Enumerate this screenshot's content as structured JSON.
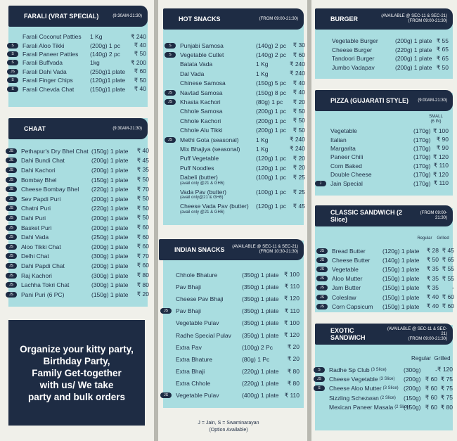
{
  "farali": {
    "title": "FARALI (VRAT SPECIAL)",
    "time": "(9:30AM-21:30)",
    "items": [
      {
        "name": "Farali Coconut Patties",
        "qty": "1 Kg",
        "price": "₹ 240"
      },
      {
        "name": "Farali Aloo Tikki",
        "qty": "(200g) 1 pc",
        "price": "₹ 40",
        "tag": "S"
      },
      {
        "name": "Farali Paneer Patties",
        "qty": "(140g) 2 pc",
        "price": "₹ 50",
        "tag": "S"
      },
      {
        "name": "Farali Buffvada",
        "qty": "1kg",
        "price": "₹ 200",
        "tag": "S"
      },
      {
        "name": "Farali Dahi Vada",
        "qty": "(250g)1 plate",
        "price": "₹ 60",
        "tag": "JS"
      },
      {
        "name": "Farali Finger Chips",
        "qty": "(120g)1 plate",
        "price": "₹ 50",
        "tag": "S"
      },
      {
        "name": "Farali Chevda Chat",
        "qty": "(150g)1 plate",
        "price": "₹ 40",
        "tag": "S"
      }
    ]
  },
  "chaat": {
    "title": "CHAAT",
    "time": "(9:30AM-21:30)",
    "items": [
      {
        "name": "Pethapur's Dry Bhel Chat",
        "qty": "(150g) 1 plate",
        "price": "₹ 40",
        "tag": "JS"
      },
      {
        "name": "Dahi Bundi Chat",
        "qty": "(200g) 1 plate",
        "price": "₹ 45",
        "tag": "JS"
      },
      {
        "name": "Dahi Kachori",
        "qty": "(200g) 1 plate",
        "price": "₹ 35",
        "tag": "JS"
      },
      {
        "name": "Bombay Bhel",
        "qty": "(150g) 1 plate",
        "price": "₹ 50",
        "tag": "JS"
      },
      {
        "name": "Cheese Bombay Bhel",
        "qty": "(220g) 1 plate",
        "price": "₹ 70",
        "tag": "JS"
      },
      {
        "name": "Sev Papdi Puri",
        "qty": "(200g) 1 plate",
        "price": "₹ 50",
        "tag": "JS"
      },
      {
        "name": "Chatni Puri",
        "qty": "(220g) 1 plate",
        "price": "₹ 50",
        "tag": "JS"
      },
      {
        "name": "Dahi Puri",
        "qty": "(200g) 1 plate",
        "price": "₹ 50",
        "tag": "JS"
      },
      {
        "name": "Basket Puri",
        "qty": "(200g) 1 plate",
        "price": "₹ 60",
        "tag": "JS"
      },
      {
        "name": "Dahi Vada",
        "qty": "(250g) 1 plate",
        "price": "₹ 60",
        "tag": "JS"
      },
      {
        "name": "Aloo Tikki Chat",
        "qty": "(200g) 1 plate",
        "price": "₹ 60",
        "tag": "JS"
      },
      {
        "name": "Delhi Chat",
        "qty": "(300g) 1 plate",
        "price": "₹ 70",
        "tag": "JS"
      },
      {
        "name": "Dahi Papdi Chat",
        "qty": "(200g) 1 plate",
        "price": "₹ 60",
        "tag": "JS"
      },
      {
        "name": "Raj Kachori",
        "qty": "(300g) 1 plate",
        "price": "₹ 80",
        "tag": "JS"
      },
      {
        "name": "Lachha Tokri Chat",
        "qty": "(300g) 1 plate",
        "price": "₹ 80",
        "tag": "JS"
      },
      {
        "name": "Pani Puri (6 PC)",
        "qty": "(150g) 1 plate",
        "price": "₹ 20",
        "tag": "JS"
      }
    ]
  },
  "promo": "Organize your kitty party,\nBirthday Party,\nFamily Get-together\nwith us/ We take\nparty and bulk orders",
  "hot": {
    "title": "HOT SNACKS",
    "time": "(FROM 09:00-21:30)",
    "items": [
      {
        "name": "Punjabi Samosa",
        "qty": "(140g) 2 pc",
        "price": "₹ 30",
        "tag": "S"
      },
      {
        "name": "Vegetable Cutlet",
        "qty": "(140g) 2 pc",
        "price": "₹ 60",
        "tag": "S"
      },
      {
        "name": "Batata Vada",
        "qty": "1 Kg",
        "price": "₹ 240"
      },
      {
        "name": "Dal Vada",
        "qty": "1 Kg",
        "price": "₹ 240"
      },
      {
        "name": "Chinese Samosa",
        "qty": "(150g) 5 pc",
        "price": "₹ 40"
      },
      {
        "name": "Navtad Samosa",
        "qty": "(150g) 8 pc",
        "price": "₹ 40",
        "tag": "JS"
      },
      {
        "name": "Khasta Kachori",
        "qty": "(80g) 1 pc",
        "price": "₹ 20",
        "tag": "JS"
      },
      {
        "name": "Chhole Samosa",
        "qty": "(200g) 1 pc",
        "price": "₹ 50"
      },
      {
        "name": "Chhole Kachori",
        "qty": "(200g) 1 pc",
        "price": "₹ 50"
      },
      {
        "name": "Chhole Alu Tikki",
        "qty": "(200g) 1 pc",
        "price": "₹ 50"
      },
      {
        "name": "Methi Gota (seasonal)",
        "qty": "1 Kg",
        "price": "₹ 240",
        "tag": "JS"
      },
      {
        "name": "Mix Bhajiya (seasonal)",
        "qty": "1 Kg",
        "price": "₹ 240"
      },
      {
        "name": "Puff Vegetable",
        "qty": "(120g) 1 pc",
        "price": "₹ 20"
      },
      {
        "name": "Puff Noodles",
        "qty": "(120g) 1 pc",
        "price": "₹ 20"
      },
      {
        "name": "Dabeli (butter)",
        "qty": "(100g) 1 pc",
        "price": "₹ 25",
        "sub": "(avail only @21 & GH6)"
      },
      {
        "name": "Vada Pav (butter)",
        "qty": "(100g) 1 pc",
        "price": "₹ 25",
        "sub": "(avail only@21 & GH6)"
      },
      {
        "name": "Cheese Vada Pav (butter)",
        "qty": "(120g) 1 pc",
        "price": "₹ 45",
        "sub": "(avail only @21 & GH6)"
      }
    ]
  },
  "indian": {
    "title": "INDIAN SNACKS",
    "time": "(AVAILABLE @ SEC-11 & SEC-21)",
    "time2": "(FROM 10:30-21:30)",
    "items": [
      {
        "name": "Chhole Bhature",
        "qty": "(350g) 1 plate",
        "price": "₹ 100"
      },
      {
        "name": "Pav Bhaji",
        "qty": "(350g) 1 plate",
        "price": "₹ 110"
      },
      {
        "name": "Cheese Pav Bhaji",
        "qty": "(350g) 1 plate",
        "price": "₹ 120"
      },
      {
        "name": "Pav Bhaji",
        "qty": "(350g) 1 plate",
        "price": "₹ 110",
        "tag": "JS"
      },
      {
        "name": "Vegetable Pulav",
        "qty": "(350g) 1 plate",
        "price": "₹ 100"
      },
      {
        "name": "Radhe Special Pulav",
        "qty": "(350g) 1 plate",
        "price": "₹ 120"
      },
      {
        "name": "Extra Pav",
        "qty": "(100g) 2 Pc",
        "price": "₹ 20"
      },
      {
        "name": "Extra Bhature",
        "qty": "(80g) 1 Pc",
        "price": "₹ 20"
      },
      {
        "name": "Extra Bhaji",
        "qty": "(220g) 1 plate",
        "price": "₹ 80"
      },
      {
        "name": "Extra Chhole",
        "qty": "(220g) 1 plate",
        "price": "₹ 80"
      },
      {
        "name": "Vegetable Pulav",
        "qty": "(400g) 1 plate",
        "price": "₹ 110",
        "tag": "JS"
      }
    ]
  },
  "legend": {
    "line1": "J = Jain, S = Swaminarayan",
    "line2": "(Option Available)"
  },
  "burger": {
    "title": "BURGER",
    "time": "(AVAILABLE @ SEC-11 & SEC-21)",
    "time2": "(FROM 09:00-21:30)",
    "items": [
      {
        "name": "Vegetable Burger",
        "qty": "(200g) 1 plate",
        "price": "₹ 55"
      },
      {
        "name": "Cheese Burger",
        "qty": "(220g) 1 plate",
        "price": "₹ 65"
      },
      {
        "name": "Tandoori Burger",
        "qty": "(200g) 1 plate",
        "price": "₹ 65"
      },
      {
        "name": "Jumbo Vadapav",
        "qty": "(200g) 1 plate",
        "price": "₹ 50"
      }
    ]
  },
  "pizza": {
    "title": "PIZZA (GUJARATI STYLE)",
    "time": "(9:00AM-21:30)",
    "col1": "SMALL",
    "col2": "(6 IN)",
    "items": [
      {
        "name": "Vegetable",
        "qty": "(170g)",
        "price": "₹ 100"
      },
      {
        "name": "Italian",
        "qty": "(170g)",
        "price": "₹ 90"
      },
      {
        "name": "Margarita",
        "qty": "(170g)",
        "price": "₹ 90"
      },
      {
        "name": "Paneer Chili",
        "qty": "(170g)",
        "price": "₹ 120"
      },
      {
        "name": "Corn Baked",
        "qty": "(170g)",
        "price": "₹ 110"
      },
      {
        "name": "Double Cheese",
        "qty": "(170g)",
        "price": "₹ 120"
      },
      {
        "name": "Jain Special",
        "qty": "(170g)",
        "price": "₹ 110",
        "tag": "J"
      }
    ]
  },
  "classic": {
    "title": "CLASSIC SANDWICH (2 Slice)",
    "time": "(FROM 09:00-21:30)",
    "colA": "Regular",
    "colB": "Grilled",
    "items": [
      {
        "name": "Bread Butter",
        "qty": "(120g) 1 plate",
        "p1": "₹ 28",
        "p2": "₹ 45",
        "tag": "JS"
      },
      {
        "name": "Cheese Butter",
        "qty": "(140g) 1 plate",
        "p1": "₹ 50",
        "p2": "₹ 65",
        "tag": "JS"
      },
      {
        "name": "Vegetable",
        "qty": "(150g) 1 plate",
        "p1": "₹ 35",
        "p2": "₹ 55",
        "tag": "JS"
      },
      {
        "name": "Aloo Mutter",
        "qty": "(150g) 1 plate",
        "p1": "₹ 35",
        "p2": "₹ 55",
        "tag": "JS"
      },
      {
        "name": "Jam Butter",
        "qty": "(150g) 1 plate",
        "p1": "₹ 35",
        "p2": "-",
        "tag": "JS"
      },
      {
        "name": "Coleslaw",
        "qty": "(150g) 1 plate",
        "p1": "₹ 40",
        "p2": "₹ 60",
        "tag": "JS"
      },
      {
        "name": "Corn Capsicum",
        "qty": "(150g) 1 plate",
        "p1": "₹ 40",
        "p2": "₹ 60",
        "tag": "JS"
      }
    ]
  },
  "exotic": {
    "title": "EXOTIC SANDWICH",
    "time": "(AVAILABLE @ SEC-11 & SEC-21)",
    "time2": "(FROM 09:00-21:30)",
    "colA": "Regular",
    "colB": "Grilled",
    "items": [
      {
        "name": "Radhe Sp Club",
        "slice": "(3 Slice)",
        "qty": "(300g)",
        "p1": "-",
        "p2": "₹ 120",
        "tag": "S"
      },
      {
        "name": "Cheese Vegetable",
        "slice": "(3 Slice)",
        "qty": "(200g)",
        "p1": "₹ 60",
        "p2": "₹ 75",
        "tag": "JS"
      },
      {
        "name": "Cheese Aloo Mutter",
        "slice": "(3 Slice)",
        "qty": "(200g)",
        "p1": "₹ 60",
        "p2": "₹ 75",
        "tag": "S"
      },
      {
        "name": "Sizzling Schezwan",
        "slice": "(2 Slice)",
        "qty": "(150g)",
        "p1": "₹ 60",
        "p2": "₹ 75"
      },
      {
        "name": "Mexican Paneer Masala",
        "slice": "(2 Slice)",
        "qty": "(150g)",
        "p1": "₹ 60",
        "p2": "₹ 80"
      }
    ]
  }
}
